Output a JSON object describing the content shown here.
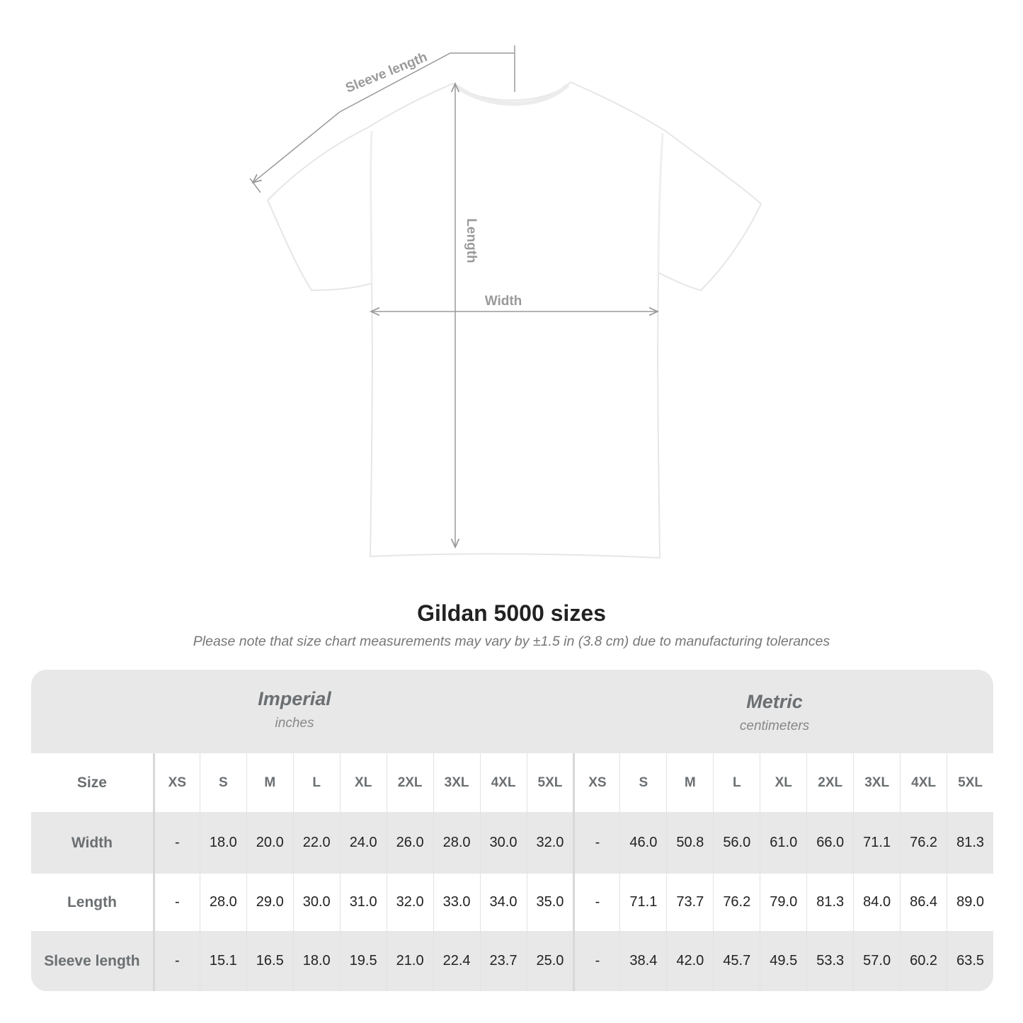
{
  "diagram": {
    "sleeve_label": "Sleeve length",
    "length_label": "Length",
    "width_label": "Width",
    "line_color": "#9a9a9a"
  },
  "title": "Gildan 5000 sizes",
  "subtitle": "Please note that size chart measurements may vary by ±1.5 in (3.8 cm) due to manufacturing tolerances",
  "table": {
    "imperial": {
      "name": "Imperial",
      "unit": "inches"
    },
    "metric": {
      "name": "Metric",
      "unit": "centimeters"
    },
    "size_label": "Size",
    "sizes": [
      "XS",
      "S",
      "M",
      "L",
      "XL",
      "2XL",
      "3XL",
      "4XL",
      "5XL"
    ],
    "rows": [
      {
        "label": "Width",
        "imperial": [
          "-",
          "18.0",
          "20.0",
          "22.0",
          "24.0",
          "26.0",
          "28.0",
          "30.0",
          "32.0"
        ],
        "metric": [
          "-",
          "46.0",
          "50.8",
          "56.0",
          "61.0",
          "66.0",
          "71.1",
          "76.2",
          "81.3"
        ]
      },
      {
        "label": "Length",
        "imperial": [
          "-",
          "28.0",
          "29.0",
          "30.0",
          "31.0",
          "32.0",
          "33.0",
          "34.0",
          "35.0"
        ],
        "metric": [
          "-",
          "71.1",
          "73.7",
          "76.2",
          "79.0",
          "81.3",
          "84.0",
          "86.4",
          "89.0"
        ]
      },
      {
        "label": "Sleeve length",
        "imperial": [
          "-",
          "15.1",
          "16.5",
          "18.0",
          "19.5",
          "21.0",
          "22.4",
          "23.7",
          "25.0"
        ],
        "metric": [
          "-",
          "38.4",
          "42.0",
          "45.7",
          "49.5",
          "53.3",
          "57.0",
          "60.2",
          "63.5"
        ]
      }
    ]
  }
}
